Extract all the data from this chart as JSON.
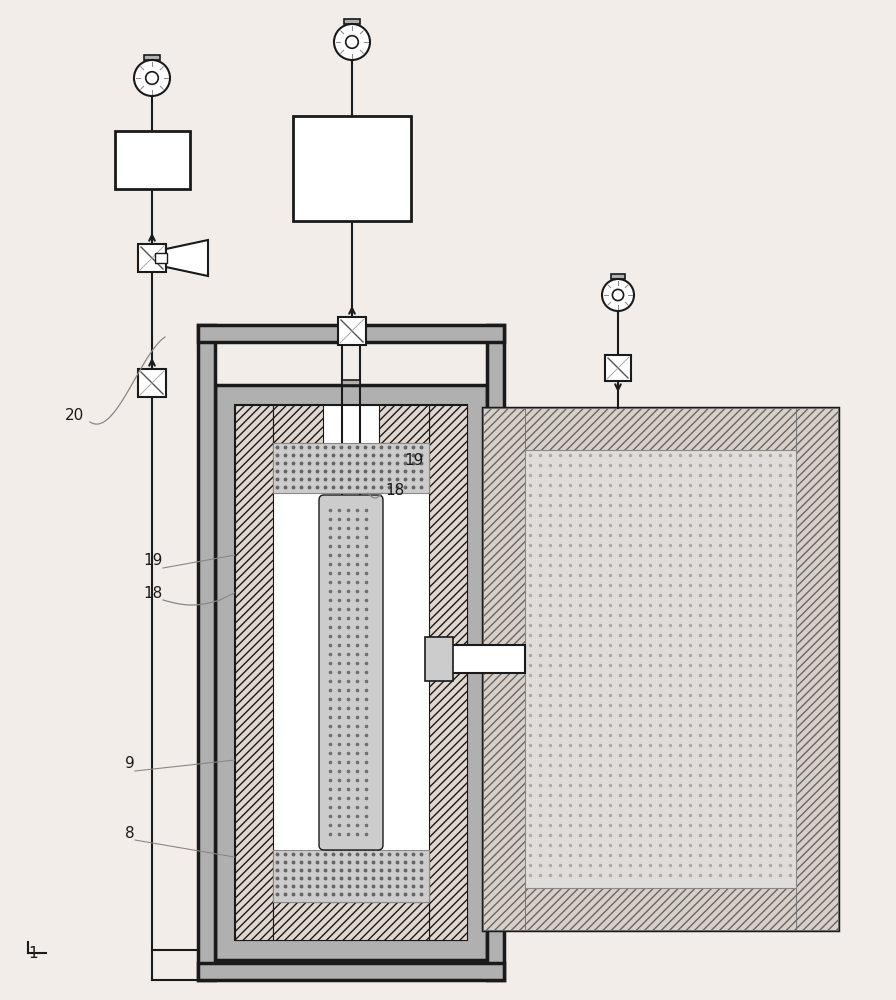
{
  "bg": "#f2ede8",
  "lc": "#1a1a1a",
  "gray_fill": "#b0b0b0",
  "gray_light": "#cccccc",
  "gray_med": "#999999",
  "gray_dark": "#888888",
  "figsize": [
    8.96,
    10.0
  ],
  "dpi": 100
}
